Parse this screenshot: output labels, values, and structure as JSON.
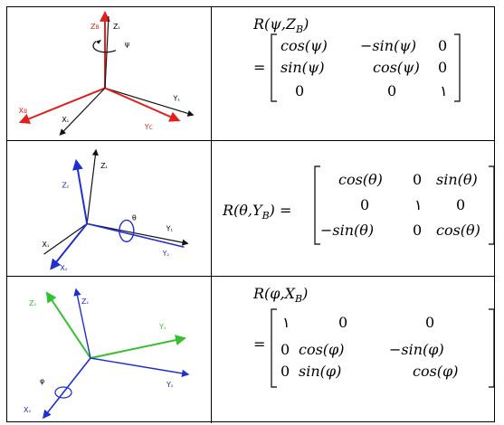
{
  "rows": [
    {
      "figure": {
        "axes": [
          "Z_B",
          "Z",
          "X_B",
          "X",
          "Y",
          "Y_C"
        ],
        "rotation_symbol": "ψ",
        "highlight_color": "#e0201c",
        "base_color": "#111111"
      },
      "equation": {
        "header": "R(ψ,Z",
        "header_sub": "B",
        "header_close": ")",
        "equals": "=",
        "matrix": [
          [
            "cos(ψ)",
            "−sin(ψ)",
            "0"
          ],
          [
            "sin(ψ)",
            "cos(ψ)",
            "0"
          ],
          [
            "0",
            "0",
            "١"
          ]
        ]
      }
    },
    {
      "figure": {
        "axes": [
          "Z",
          "Z",
          "X",
          "X",
          "Y",
          "Y"
        ],
        "rotation_symbol": "θ",
        "highlight_color": "#1f2fd0",
        "base_color": "#111111"
      },
      "equation": {
        "header": "R(θ,Y",
        "header_sub": "B",
        "header_close": ") =",
        "matrix": [
          [
            "cos(θ)",
            "0",
            "sin(θ)"
          ],
          [
            "0",
            "١",
            "0"
          ],
          [
            "−sin(θ)",
            "0",
            "cos(θ)"
          ]
        ]
      }
    },
    {
      "figure": {
        "axes": [
          "Z",
          "Z",
          "Y",
          "Y",
          "X",
          "X"
        ],
        "rotation_symbol": "φ",
        "highlight_color": "#35c030",
        "base_color": "#1f2fd0"
      },
      "equation": {
        "header": "R(φ,X",
        "header_sub": "B",
        "header_close": ")",
        "equals": "=",
        "matrix": [
          [
            "١",
            "0",
            "0"
          ],
          [
            "0",
            "cos(φ)",
            "−sin(φ)"
          ],
          [
            "0",
            "sin(φ)",
            "cos(φ)"
          ]
        ]
      }
    }
  ]
}
